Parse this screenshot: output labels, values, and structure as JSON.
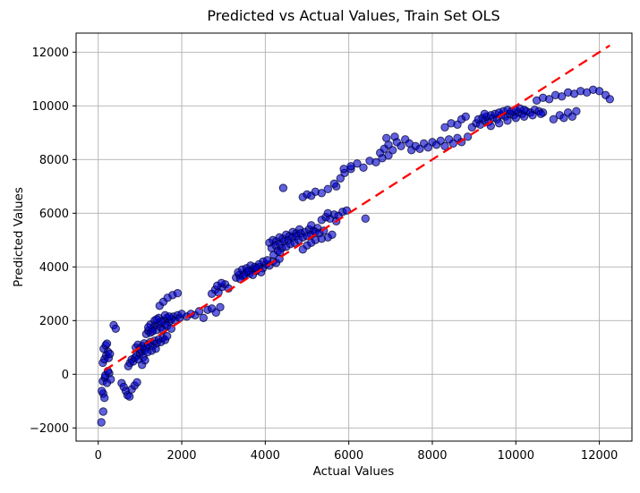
{
  "title": "Predicted vs Actual Values, Train Set OLS",
  "chart_data": {
    "type": "scatter",
    "title": "Predicted vs Actual Values, Train Set OLS",
    "xlabel": "Actual Values",
    "ylabel": "Predicted Values",
    "xlim": [
      -530,
      12780
    ],
    "ylim": [
      -2490,
      12710
    ],
    "xticks": [
      0,
      2000,
      4000,
      6000,
      8000,
      10000,
      12000
    ],
    "xtick_labels": [
      "0",
      "2000",
      "4000",
      "6000",
      "8000",
      "10000",
      "12000"
    ],
    "yticks": [
      -2000,
      0,
      2000,
      4000,
      6000,
      8000,
      10000,
      12000
    ],
    "ytick_labels": [
      "−2000",
      "0",
      "2000",
      "4000",
      "6000",
      "8000",
      "10000",
      "12000"
    ],
    "grid": true,
    "grid_color": "#b0b0b0",
    "spine_color": "#000000",
    "legend": null,
    "marker": {
      "shape": "circle",
      "fill": "#0000cd",
      "fill_opacity": 0.62,
      "edge": "#000033",
      "edge_opacity": 0.75,
      "radius": 4.2
    },
    "reference_line": {
      "name": "identity-line y=x",
      "style": "dashed",
      "color": "#ff0000",
      "width": 2.3,
      "dash": "11 7",
      "points": [
        [
          150,
          150
        ],
        [
          12250,
          12250
        ]
      ]
    },
    "series": [
      {
        "name": "train-set-predictions",
        "points": [
          [
            75,
            -1790
          ],
          [
            120,
            -1390
          ],
          [
            120,
            -720
          ],
          [
            85,
            -620
          ],
          [
            150,
            -880
          ],
          [
            560,
            -330
          ],
          [
            610,
            -470
          ],
          [
            660,
            -620
          ],
          [
            700,
            -780
          ],
          [
            750,
            -830
          ],
          [
            800,
            -560
          ],
          [
            870,
            -420
          ],
          [
            930,
            -300
          ],
          [
            110,
            -260
          ],
          [
            160,
            -120
          ],
          [
            210,
            -320
          ],
          [
            260,
            40
          ],
          [
            170,
            -40
          ],
          [
            300,
            -190
          ],
          [
            230,
            120
          ],
          [
            110,
            430
          ],
          [
            150,
            560
          ],
          [
            190,
            700
          ],
          [
            230,
            840
          ],
          [
            130,
            950
          ],
          [
            180,
            1080
          ],
          [
            250,
            610
          ],
          [
            280,
            760
          ],
          [
            210,
            1140
          ],
          [
            370,
            1830
          ],
          [
            420,
            1700
          ],
          [
            720,
            300
          ],
          [
            760,
            420
          ],
          [
            800,
            550
          ],
          [
            840,
            480
          ],
          [
            880,
            620
          ],
          [
            920,
            700
          ],
          [
            960,
            560
          ],
          [
            1000,
            780
          ],
          [
            1040,
            850
          ],
          [
            1080,
            640
          ],
          [
            1120,
            900
          ],
          [
            1050,
            350
          ],
          [
            1120,
            520
          ],
          [
            900,
            1000
          ],
          [
            950,
            1100
          ],
          [
            1000,
            950
          ],
          [
            1060,
            1050
          ],
          [
            1100,
            1150
          ],
          [
            1150,
            1000
          ],
          [
            1200,
            1100
          ],
          [
            1250,
            1200
          ],
          [
            1300,
            1050
          ],
          [
            1350,
            1250
          ],
          [
            1400,
            1150
          ],
          [
            1450,
            1300
          ],
          [
            1500,
            1200
          ],
          [
            1550,
            1350
          ],
          [
            1600,
            1280
          ],
          [
            1650,
            1420
          ],
          [
            1380,
            950
          ],
          [
            1280,
            880
          ],
          [
            1180,
            820
          ],
          [
            1150,
            1500
          ],
          [
            1200,
            1620
          ],
          [
            1250,
            1550
          ],
          [
            1300,
            1700
          ],
          [
            1350,
            1800
          ],
          [
            1400,
            1650
          ],
          [
            1450,
            1900
          ],
          [
            1500,
            1750
          ],
          [
            1550,
            2000
          ],
          [
            1600,
            1850
          ],
          [
            1650,
            2100
          ],
          [
            1700,
            1950
          ],
          [
            1750,
            2050
          ],
          [
            1800,
            2150
          ],
          [
            1850,
            2000
          ],
          [
            1900,
            2200
          ],
          [
            1950,
            2100
          ],
          [
            2000,
            2250
          ],
          [
            1250,
            1850
          ],
          [
            1350,
            2000
          ],
          [
            1450,
            2100
          ],
          [
            1550,
            1650
          ],
          [
            1650,
            1800
          ],
          [
            1750,
            1700
          ],
          [
            1300,
            1600
          ],
          [
            1500,
            1950
          ],
          [
            1400,
            2050
          ],
          [
            1600,
            2200
          ],
          [
            1700,
            2150
          ],
          [
            1200,
            1750
          ],
          [
            1470,
            2550
          ],
          [
            1560,
            2700
          ],
          [
            1660,
            2850
          ],
          [
            1780,
            2950
          ],
          [
            1900,
            3020
          ],
          [
            2120,
            2150
          ],
          [
            2220,
            2250
          ],
          [
            2320,
            2200
          ],
          [
            2420,
            2350
          ],
          [
            2520,
            2100
          ],
          [
            2620,
            2400
          ],
          [
            2720,
            2450
          ],
          [
            2820,
            2300
          ],
          [
            2920,
            2500
          ],
          [
            2720,
            3000
          ],
          [
            2800,
            3150
          ],
          [
            2880,
            3050
          ],
          [
            2960,
            3250
          ],
          [
            3040,
            3350
          ],
          [
            3120,
            3200
          ],
          [
            2850,
            3300
          ],
          [
            2950,
            3400
          ],
          [
            3300,
            3600
          ],
          [
            3380,
            3700
          ],
          [
            3460,
            3650
          ],
          [
            3540,
            3800
          ],
          [
            3620,
            3750
          ],
          [
            3700,
            3900
          ],
          [
            3780,
            3850
          ],
          [
            3860,
            4000
          ],
          [
            3940,
            3950
          ],
          [
            4020,
            4100
          ],
          [
            4100,
            4050
          ],
          [
            4180,
            4200
          ],
          [
            4260,
            4150
          ],
          [
            4340,
            4300
          ],
          [
            3350,
            3800
          ],
          [
            3450,
            3900
          ],
          [
            3550,
            3950
          ],
          [
            3650,
            4050
          ],
          [
            3750,
            4000
          ],
          [
            3850,
            4100
          ],
          [
            3950,
            4200
          ],
          [
            4050,
            4250
          ],
          [
            3400,
            3550
          ],
          [
            3500,
            3700
          ],
          [
            3600,
            3850
          ],
          [
            3700,
            3700
          ],
          [
            3800,
            3950
          ],
          [
            3900,
            3800
          ],
          [
            4100,
            4900
          ],
          [
            4180,
            5000
          ],
          [
            4260,
            4950
          ],
          [
            4340,
            5100
          ],
          [
            4420,
            5050
          ],
          [
            4500,
            5200
          ],
          [
            4580,
            5150
          ],
          [
            4660,
            5300
          ],
          [
            4740,
            5250
          ],
          [
            4820,
            5400
          ],
          [
            4150,
            4700
          ],
          [
            4250,
            4800
          ],
          [
            4350,
            4850
          ],
          [
            4450,
            4950
          ],
          [
            4550,
            5000
          ],
          [
            4650,
            5100
          ],
          [
            4750,
            5150
          ],
          [
            4850,
            5250
          ],
          [
            4950,
            5300
          ],
          [
            5050,
            5400
          ],
          [
            5150,
            5350
          ],
          [
            5250,
            5450
          ],
          [
            4300,
            4600
          ],
          [
            4400,
            4700
          ],
          [
            4500,
            4750
          ],
          [
            4600,
            4850
          ],
          [
            4700,
            4900
          ],
          [
            4800,
            5000
          ],
          [
            4900,
            5100
          ],
          [
            5000,
            5150
          ],
          [
            5100,
            5200
          ],
          [
            5200,
            5300
          ],
          [
            5300,
            5250
          ],
          [
            5400,
            5350
          ],
          [
            5500,
            5100
          ],
          [
            5600,
            5200
          ],
          [
            5000,
            4800
          ],
          [
            5100,
            4900
          ],
          [
            5200,
            5000
          ],
          [
            4900,
            4650
          ],
          [
            5350,
            5050
          ],
          [
            4200,
            4450
          ],
          [
            4350,
            4550
          ],
          [
            5100,
            5550
          ],
          [
            5350,
            5750
          ],
          [
            5450,
            5850
          ],
          [
            5550,
            5800
          ],
          [
            5650,
            5950
          ],
          [
            5750,
            5900
          ],
          [
            5850,
            6050
          ],
          [
            5950,
            6100
          ],
          [
            5500,
            6000
          ],
          [
            5700,
            5700
          ],
          [
            6400,
            5800
          ],
          [
            4430,
            6940
          ],
          [
            4900,
            6600
          ],
          [
            5000,
            6700
          ],
          [
            5100,
            6650
          ],
          [
            5200,
            6800
          ],
          [
            5350,
            6750
          ],
          [
            5500,
            6900
          ],
          [
            5700,
            7000
          ],
          [
            5650,
            7100
          ],
          [
            5800,
            7300
          ],
          [
            5900,
            7500
          ],
          [
            6050,
            7650
          ],
          [
            5880,
            7650
          ],
          [
            6050,
            7750
          ],
          [
            6200,
            7850
          ],
          [
            6350,
            7700
          ],
          [
            6500,
            7950
          ],
          [
            6650,
            7900
          ],
          [
            6800,
            8050
          ],
          [
            6950,
            8150
          ],
          [
            6750,
            8250
          ],
          [
            6850,
            8400
          ],
          [
            6950,
            8550
          ],
          [
            7050,
            8350
          ],
          [
            7150,
            8650
          ],
          [
            7250,
            8500
          ],
          [
            7350,
            8750
          ],
          [
            7450,
            8600
          ],
          [
            6900,
            8800
          ],
          [
            7100,
            8850
          ],
          [
            7500,
            8350
          ],
          [
            7600,
            8500
          ],
          [
            7700,
            8400
          ],
          [
            7800,
            8600
          ],
          [
            7900,
            8450
          ],
          [
            8000,
            8650
          ],
          [
            8100,
            8550
          ],
          [
            8200,
            8700
          ],
          [
            8300,
            8500
          ],
          [
            8400,
            8750
          ],
          [
            8500,
            8600
          ],
          [
            8600,
            8800
          ],
          [
            8700,
            8650
          ],
          [
            8850,
            8850
          ],
          [
            8300,
            9200
          ],
          [
            8450,
            9350
          ],
          [
            8600,
            9300
          ],
          [
            8700,
            9500
          ],
          [
            8800,
            9600
          ],
          [
            8950,
            9200
          ],
          [
            9050,
            9350
          ],
          [
            9150,
            9300
          ],
          [
            9250,
            9450
          ],
          [
            9350,
            9400
          ],
          [
            9450,
            9550
          ],
          [
            9550,
            9500
          ],
          [
            9650,
            9650
          ],
          [
            9750,
            9600
          ],
          [
            9850,
            9700
          ],
          [
            9950,
            9650
          ],
          [
            10050,
            9750
          ],
          [
            10150,
            9700
          ],
          [
            10250,
            9800
          ],
          [
            10350,
            9750
          ],
          [
            10450,
            9850
          ],
          [
            10550,
            9800
          ],
          [
            10650,
            9750
          ],
          [
            9100,
            9500
          ],
          [
            9200,
            9550
          ],
          [
            9300,
            9600
          ],
          [
            9400,
            9650
          ],
          [
            9500,
            9700
          ],
          [
            9600,
            9750
          ],
          [
            9700,
            9800
          ],
          [
            9800,
            9850
          ],
          [
            9900,
            9800
          ],
          [
            10000,
            9850
          ],
          [
            10100,
            9900
          ],
          [
            10200,
            9850
          ],
          [
            9400,
            9250
          ],
          [
            9600,
            9350
          ],
          [
            9800,
            9450
          ],
          [
            10000,
            9550
          ],
          [
            10200,
            9600
          ],
          [
            10400,
            9650
          ],
          [
            10600,
            9700
          ],
          [
            9250,
            9700
          ],
          [
            10900,
            9500
          ],
          [
            11050,
            9650
          ],
          [
            11150,
            9550
          ],
          [
            11250,
            9750
          ],
          [
            11350,
            9600
          ],
          [
            11450,
            9800
          ],
          [
            10500,
            10200
          ],
          [
            10650,
            10300
          ],
          [
            10800,
            10250
          ],
          [
            10950,
            10400
          ],
          [
            11100,
            10350
          ],
          [
            11250,
            10500
          ],
          [
            11400,
            10450
          ],
          [
            11550,
            10550
          ],
          [
            11700,
            10500
          ],
          [
            11850,
            10600
          ],
          [
            12000,
            10550
          ],
          [
            12150,
            10400
          ],
          [
            12250,
            10250
          ]
        ]
      }
    ]
  }
}
